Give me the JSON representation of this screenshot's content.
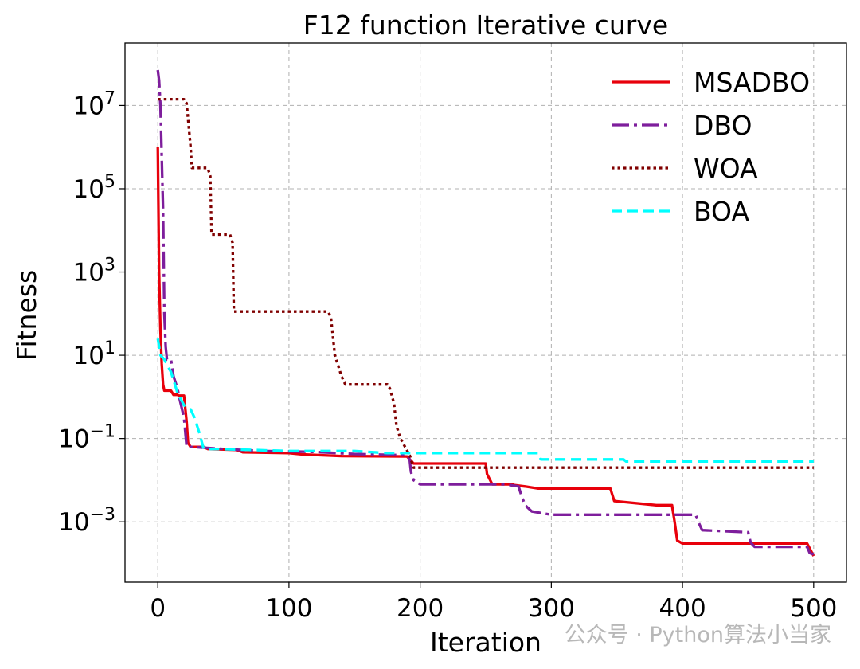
{
  "chart_data": {
    "type": "line",
    "title": "F12 function Iterative curve",
    "xlabel": "Iteration",
    "ylabel": "Fitness",
    "yscale": "log",
    "xlim": [
      -25,
      525
    ],
    "ylim_log10": [
      -4.45,
      8.5
    ],
    "grid": true,
    "legend_position": "top-right",
    "x_ticks": [
      {
        "value": 0,
        "label": "0"
      },
      {
        "value": 100,
        "label": "100"
      },
      {
        "value": 200,
        "label": "200"
      },
      {
        "value": 300,
        "label": "300"
      },
      {
        "value": 400,
        "label": "400"
      },
      {
        "value": 500,
        "label": "500"
      }
    ],
    "y_ticks": [
      {
        "exp": 7,
        "base": "10",
        "sup": "7"
      },
      {
        "exp": 5,
        "base": "10",
        "sup": "5"
      },
      {
        "exp": 3,
        "base": "10",
        "sup": "3"
      },
      {
        "exp": 1,
        "base": "10",
        "sup": "1"
      },
      {
        "exp": -1,
        "base": "10",
        "sup": "−1"
      },
      {
        "exp": -3,
        "base": "10",
        "sup": "−3"
      }
    ],
    "series": [
      {
        "name": "MSADBO",
        "color": "#e8000b",
        "style": "solid",
        "points": [
          [
            0,
            6.0
          ],
          [
            1,
            3.0
          ],
          [
            2,
            1.6
          ],
          [
            3,
            0.8
          ],
          [
            4,
            0.3
          ],
          [
            5,
            0.15
          ],
          [
            10,
            0.15
          ],
          [
            12,
            0.05
          ],
          [
            15,
            0.05
          ],
          [
            16,
            0.03
          ],
          [
            20,
            0.03
          ],
          [
            22,
            -0.6
          ],
          [
            23,
            -1.1
          ],
          [
            25,
            -1.2
          ],
          [
            35,
            -1.2
          ],
          [
            38,
            -1.25
          ],
          [
            60,
            -1.27
          ],
          [
            65,
            -1.33
          ],
          [
            100,
            -1.35
          ],
          [
            110,
            -1.38
          ],
          [
            140,
            -1.42
          ],
          [
            190,
            -1.43
          ],
          [
            195,
            -1.6
          ],
          [
            250,
            -1.6
          ],
          [
            251,
            -1.85
          ],
          [
            255,
            -2.1
          ],
          [
            270,
            -2.1
          ],
          [
            272,
            -2.12
          ],
          [
            280,
            -2.15
          ],
          [
            290,
            -2.2
          ],
          [
            345,
            -2.2
          ],
          [
            348,
            -2.5
          ],
          [
            380,
            -2.6
          ],
          [
            392,
            -2.6
          ],
          [
            394,
            -3.0
          ],
          [
            396,
            -3.45
          ],
          [
            400,
            -3.52
          ],
          [
            495,
            -3.52
          ],
          [
            500,
            -3.82
          ]
        ]
      },
      {
        "name": "DBO",
        "color": "#7e1e9c",
        "style": "dashdot",
        "points": [
          [
            0,
            7.85
          ],
          [
            1,
            7.6
          ],
          [
            2,
            7.0
          ],
          [
            4,
            4.5
          ],
          [
            5,
            2.0
          ],
          [
            6,
            1.2
          ],
          [
            7,
            0.9
          ],
          [
            10,
            0.9
          ],
          [
            12,
            0.5
          ],
          [
            15,
            0.2
          ],
          [
            17,
            -0.1
          ],
          [
            20,
            -0.5
          ],
          [
            22,
            -1.2
          ],
          [
            25,
            -1.2
          ],
          [
            50,
            -1.25
          ],
          [
            80,
            -1.3
          ],
          [
            120,
            -1.32
          ],
          [
            150,
            -1.37
          ],
          [
            190,
            -1.4
          ],
          [
            192,
            -1.5
          ],
          [
            193,
            -1.8
          ],
          [
            195,
            -2.0
          ],
          [
            200,
            -2.1
          ],
          [
            250,
            -2.1
          ],
          [
            265,
            -2.1
          ],
          [
            275,
            -2.15
          ],
          [
            277,
            -2.35
          ],
          [
            280,
            -2.6
          ],
          [
            285,
            -2.75
          ],
          [
            300,
            -2.83
          ],
          [
            410,
            -2.83
          ],
          [
            412,
            -3.0
          ],
          [
            415,
            -3.2
          ],
          [
            450,
            -3.25
          ],
          [
            452,
            -3.5
          ],
          [
            455,
            -3.6
          ],
          [
            495,
            -3.6
          ],
          [
            497,
            -3.75
          ],
          [
            500,
            -3.78
          ]
        ]
      },
      {
        "name": "WOA",
        "color": "#800000",
        "style": "dotted",
        "points": [
          [
            0,
            7.15
          ],
          [
            20,
            7.15
          ],
          [
            22,
            7.05
          ],
          [
            25,
            6.0
          ],
          [
            26,
            5.5
          ],
          [
            38,
            5.5
          ],
          [
            40,
            5.3
          ],
          [
            41,
            3.9
          ],
          [
            55,
            3.9
          ],
          [
            57,
            3.7
          ],
          [
            58,
            2.05
          ],
          [
            130,
            2.05
          ],
          [
            132,
            1.9
          ],
          [
            135,
            1.0
          ],
          [
            140,
            0.5
          ],
          [
            143,
            0.3
          ],
          [
            175,
            0.3
          ],
          [
            177,
            0.2
          ],
          [
            180,
            -0.15
          ],
          [
            182,
            -0.7
          ],
          [
            185,
            -1.0
          ],
          [
            192,
            -1.4
          ],
          [
            195,
            -1.7
          ],
          [
            500,
            -1.7
          ]
        ]
      },
      {
        "name": "BOA",
        "color": "#00ffff",
        "style": "dashed",
        "points": [
          [
            0,
            1.4
          ],
          [
            2,
            1.0
          ],
          [
            5,
            0.9
          ],
          [
            10,
            0.6
          ],
          [
            15,
            0.1
          ],
          [
            20,
            -0.2
          ],
          [
            25,
            -0.3
          ],
          [
            28,
            -0.5
          ],
          [
            32,
            -0.9
          ],
          [
            35,
            -1.25
          ],
          [
            45,
            -1.25
          ],
          [
            70,
            -1.27
          ],
          [
            100,
            -1.3
          ],
          [
            150,
            -1.3
          ],
          [
            175,
            -1.35
          ],
          [
            200,
            -1.35
          ],
          [
            250,
            -1.35
          ],
          [
            290,
            -1.35
          ],
          [
            292,
            -1.5
          ],
          [
            355,
            -1.5
          ],
          [
            357,
            -1.55
          ],
          [
            500,
            -1.55
          ]
        ]
      }
    ]
  },
  "watermark": {
    "text": "公众号 · Python算法小当家"
  }
}
